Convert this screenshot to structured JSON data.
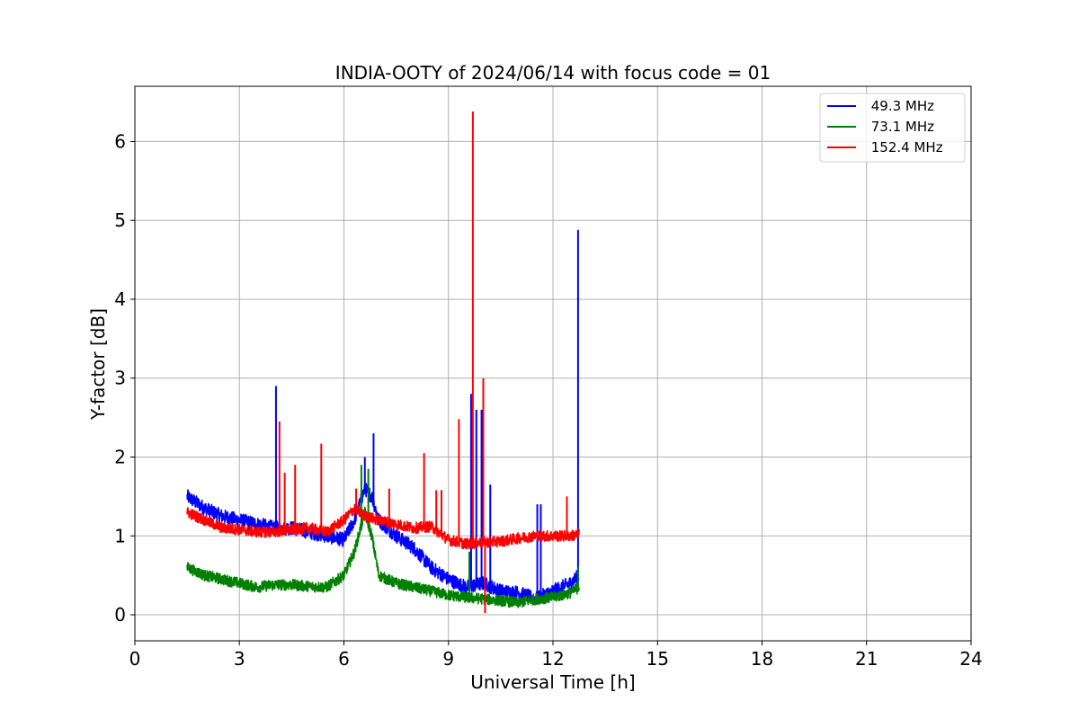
{
  "chart_data": {
    "type": "line",
    "title": "INDIA-OOTY of 2024/06/14 with focus code = 01",
    "xlabel": "Universal Time [h]",
    "ylabel": "Y-factor [dB]",
    "xlim": [
      0,
      24
    ],
    "ylim": [
      -0.33,
      6.7
    ],
    "xticks": [
      0,
      3,
      6,
      9,
      12,
      15,
      18,
      21,
      24
    ],
    "yticks": [
      0,
      1,
      2,
      3,
      4,
      5,
      6
    ],
    "grid": true,
    "legend_position": "top-right",
    "series": [
      {
        "name": " 49.3 MHz",
        "color": "#0000ff",
        "base": [
          [
            1.5,
            1.5
          ],
          [
            2,
            1.35
          ],
          [
            2.5,
            1.25
          ],
          [
            3,
            1.2
          ],
          [
            3.5,
            1.15
          ],
          [
            4,
            1.1
          ],
          [
            4.5,
            1.1
          ],
          [
            5,
            1.05
          ],
          [
            5.5,
            1.0
          ],
          [
            6,
            0.95
          ],
          [
            6.3,
            1.2
          ],
          [
            6.6,
            1.6
          ],
          [
            6.8,
            1.5
          ],
          [
            7,
            1.2
          ],
          [
            7.5,
            1.0
          ],
          [
            8,
            0.85
          ],
          [
            8.5,
            0.6
          ],
          [
            9,
            0.45
          ],
          [
            9.5,
            0.35
          ],
          [
            10,
            0.4
          ],
          [
            10.5,
            0.3
          ],
          [
            11,
            0.28
          ],
          [
            11.5,
            0.2
          ],
          [
            12,
            0.3
          ],
          [
            12.5,
            0.4
          ],
          [
            12.75,
            0.5
          ]
        ],
        "noise": 0.09,
        "spikes": [
          [
            4.05,
            2.9
          ],
          [
            6.6,
            2.0
          ],
          [
            6.85,
            2.3
          ],
          [
            9.65,
            2.8
          ],
          [
            9.8,
            2.6
          ],
          [
            9.95,
            2.6
          ],
          [
            10.2,
            1.65
          ],
          [
            11.55,
            1.4
          ],
          [
            11.65,
            1.4
          ],
          [
            12.72,
            4.88
          ]
        ]
      },
      {
        "name": " 73.1 MHz",
        "color": "#008000",
        "base": [
          [
            1.5,
            0.6
          ],
          [
            2,
            0.5
          ],
          [
            2.5,
            0.45
          ],
          [
            3,
            0.4
          ],
          [
            3.5,
            0.35
          ],
          [
            4,
            0.38
          ],
          [
            4.5,
            0.38
          ],
          [
            5,
            0.36
          ],
          [
            5.5,
            0.35
          ],
          [
            6,
            0.5
          ],
          [
            6.3,
            0.8
          ],
          [
            6.6,
            1.3
          ],
          [
            6.8,
            1.0
          ],
          [
            7,
            0.5
          ],
          [
            7.5,
            0.4
          ],
          [
            8,
            0.35
          ],
          [
            8.5,
            0.3
          ],
          [
            9,
            0.25
          ],
          [
            9.5,
            0.22
          ],
          [
            10,
            0.2
          ],
          [
            10.5,
            0.18
          ],
          [
            11,
            0.15
          ],
          [
            11.5,
            0.2
          ],
          [
            12,
            0.22
          ],
          [
            12.5,
            0.28
          ],
          [
            12.75,
            0.35
          ]
        ],
        "noise": 0.07,
        "spikes": [
          [
            6.5,
            1.9
          ],
          [
            6.7,
            1.85
          ],
          [
            9.6,
            0.8
          ],
          [
            12.72,
            0.6
          ]
        ]
      },
      {
        "name": " 152.4 MHz",
        "color": "#ff0000",
        "base": [
          [
            1.5,
            1.3
          ],
          [
            2,
            1.2
          ],
          [
            2.5,
            1.1
          ],
          [
            3,
            1.08
          ],
          [
            3.5,
            1.05
          ],
          [
            4,
            1.05
          ],
          [
            4.5,
            1.08
          ],
          [
            5,
            1.1
          ],
          [
            5.5,
            1.05
          ],
          [
            6,
            1.2
          ],
          [
            6.3,
            1.35
          ],
          [
            6.6,
            1.25
          ],
          [
            7,
            1.2
          ],
          [
            7.5,
            1.15
          ],
          [
            8,
            1.1
          ],
          [
            8.5,
            1.12
          ],
          [
            9,
            0.95
          ],
          [
            9.5,
            0.9
          ],
          [
            10,
            0.92
          ],
          [
            10.5,
            0.93
          ],
          [
            11,
            0.97
          ],
          [
            11.5,
            1.0
          ],
          [
            12,
            1.0
          ],
          [
            12.5,
            1.0
          ],
          [
            12.75,
            1.02
          ]
        ],
        "noise": 0.07,
        "spikes": [
          [
            4.15,
            2.45
          ],
          [
            4.3,
            1.8
          ],
          [
            4.6,
            1.9
          ],
          [
            5.35,
            2.17
          ],
          [
            6.35,
            1.6
          ],
          [
            7.3,
            1.6
          ],
          [
            8.3,
            2.05
          ],
          [
            8.65,
            1.58
          ],
          [
            8.8,
            1.58
          ],
          [
            9.3,
            2.48
          ],
          [
            9.7,
            6.38
          ],
          [
            10.0,
            3.0
          ],
          [
            10.05,
            0.02
          ],
          [
            12.4,
            1.5
          ]
        ]
      }
    ]
  }
}
